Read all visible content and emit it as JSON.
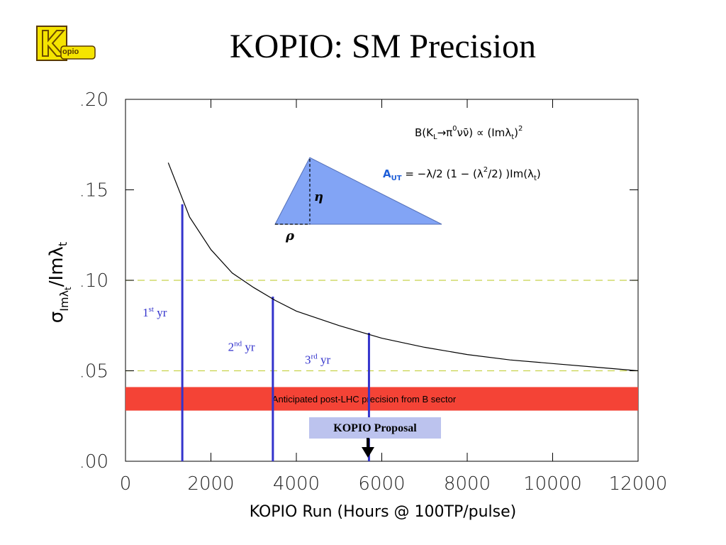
{
  "slide": {
    "title": "KOPIO: SM Precision",
    "logo_text": "opio"
  },
  "chart_data": {
    "type": "line",
    "xlabel": "KOPIO Run (Hours @ 100TP/pulse)",
    "ylabel_parts": {
      "sigma": "σ",
      "sub": "Imλ",
      "sub_t": "t",
      "slash": "/",
      "im": "Imλ",
      "im_t": "t"
    },
    "xlim": [
      0,
      12000
    ],
    "ylim": [
      0,
      0.2
    ],
    "xticks": [
      0,
      2000,
      4000,
      6000,
      8000,
      10000,
      12000
    ],
    "xtick_labels": [
      "0",
      "2000",
      "4000",
      "6000",
      "8000",
      "10000",
      "12000"
    ],
    "yticks": [
      0,
      0.05,
      0.1,
      0.15,
      0.2
    ],
    "ytick_labels": [
      ".00",
      ".05",
      ".10",
      ".15",
      ".20"
    ],
    "series": [
      {
        "x": [
          1000,
          1500,
          2000,
          2500,
          3000,
          3500,
          4000,
          5000,
          6000,
          7000,
          8000,
          9000,
          10000,
          11000,
          12000
        ],
        "y": [
          0.165,
          0.135,
          0.117,
          0.104,
          0.096,
          0.089,
          0.083,
          0.075,
          0.068,
          0.063,
          0.059,
          0.056,
          0.054,
          0.052,
          0.05
        ]
      }
    ],
    "reference_lines": [
      0.1,
      0.05
    ],
    "band": {
      "y": [
        0.028,
        0.041
      ],
      "label": "Anticipated post-LHC precision from B sector",
      "color": "#f44336"
    },
    "year_markers": [
      {
        "x": 1330,
        "y": 0.142,
        "label_base": "1",
        "label_sup": "st",
        "label_end": " yr",
        "label_x": 400,
        "label_y": 0.08
      },
      {
        "x": 3450,
        "y": 0.091,
        "label_base": "2",
        "label_sup": "nd",
        "label_end": " yr",
        "label_x": 2400,
        "label_y": 0.061
      },
      {
        "x": 5700,
        "y": 0.071,
        "label_base": "3",
        "label_sup": "rd",
        "label_end": " yr",
        "label_x": 4200,
        "label_y": 0.054
      }
    ],
    "proposal": {
      "label": "KOPIO Proposal",
      "x": 5700
    },
    "annotations": {
      "formula_b": "B(K",
      "formula_b_sub": "L",
      "formula_b_rest": "→π",
      "formula_b_sup0": "0",
      "formula_b_nu": "νν̄)  ∝  (Imλ",
      "formula_b_sub_t": "t",
      "formula_b_end": ")",
      "formula_b_sq": "2",
      "formula_a": "A",
      "formula_a_sub": "UT",
      "formula_a_rest": "  =  −λ/2  (1  −  (λ",
      "formula_a_sq": "2",
      "formula_a_rest2": "/2) )Im(λ",
      "formula_a_sub_t": "t",
      "formula_a_end": ")",
      "eta": "η",
      "rho": "ρ"
    },
    "colors": {
      "marker": "#3333cc",
      "curve": "#000000",
      "refline": "#c8d24a",
      "triangle": "#82a4f5",
      "proposal_box": "#bcc3ee",
      "au_text": "#1f5fd8",
      "logo_yellow": "#f5e400"
    }
  }
}
